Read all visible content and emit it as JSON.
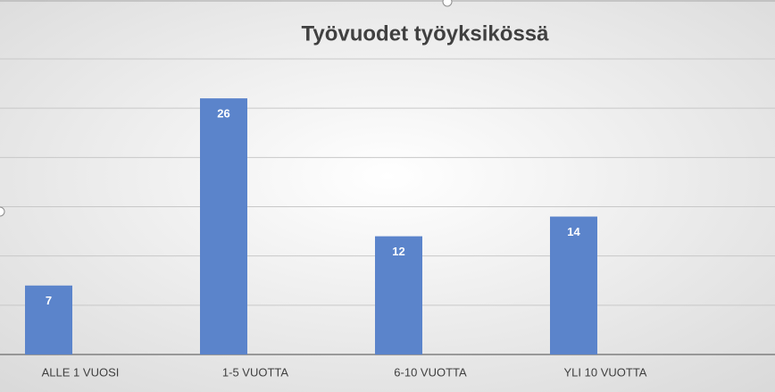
{
  "chart_data": {
    "type": "bar",
    "title": "Työvuodet työyksikössä",
    "categories": [
      "ALLE 1 VUOSI",
      "1-5 VUOTTA",
      "6-10 VUOTTA",
      "YLI 10 VUOTTA"
    ],
    "values": [
      7,
      26,
      12,
      14
    ],
    "color": "#5b84cb",
    "ylim": [
      0,
      30
    ],
    "yticks": [
      0,
      5,
      10,
      15,
      20,
      25,
      30
    ],
    "grid": true
  }
}
